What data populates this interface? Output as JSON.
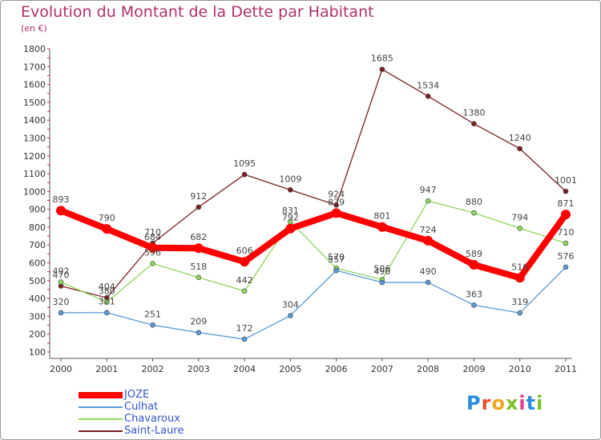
{
  "header": {
    "title": "Evolution du Montant de la Dette par Habitant",
    "subtitle": "(en €)"
  },
  "logo": {
    "text": "Proxiti",
    "colors": [
      "#2a8de0",
      "#e84c2a",
      "#f0a820",
      "#7cc02a",
      "#e04090",
      "#2a8de0",
      "#7cc02a"
    ]
  },
  "chart_data": {
    "type": "line",
    "title": "Evolution du Montant de la Dette par Habitant",
    "ylabel": "(en €)",
    "xlabel": "",
    "x": [
      "2000",
      "2001",
      "2002",
      "2003",
      "2004",
      "2005",
      "2006",
      "2007",
      "2008",
      "2009",
      "2010",
      "2011"
    ],
    "ylim": [
      100,
      1800
    ],
    "yticks": [
      100,
      200,
      300,
      400,
      500,
      600,
      700,
      800,
      900,
      1000,
      1100,
      1200,
      1300,
      1400,
      1500,
      1600,
      1700,
      1800
    ],
    "grid": false,
    "legend_position": "bottom-left",
    "series": [
      {
        "name": "JOZE",
        "color": "#ff0000",
        "values": [
          893,
          790,
          684,
          682,
          606,
          792,
          879,
          801,
          724,
          589,
          516,
          871
        ]
      },
      {
        "name": "Culhat",
        "color": "#5a9bd4",
        "values": [
          320,
          321,
          251,
          209,
          172,
          304,
          557,
          490,
          490,
          363,
          319,
          576
        ]
      },
      {
        "name": "Chavaroux",
        "color": "#8ed65c",
        "values": [
          492,
          380,
          596,
          518,
          442,
          831,
          570,
          506,
          947,
          880,
          794,
          710
        ]
      },
      {
        "name": "Saint-Laure",
        "color": "#7a2020",
        "values": [
          470,
          404,
          710,
          912,
          1095,
          1009,
          924,
          1685,
          1534,
          1380,
          1240,
          1001
        ]
      }
    ]
  }
}
